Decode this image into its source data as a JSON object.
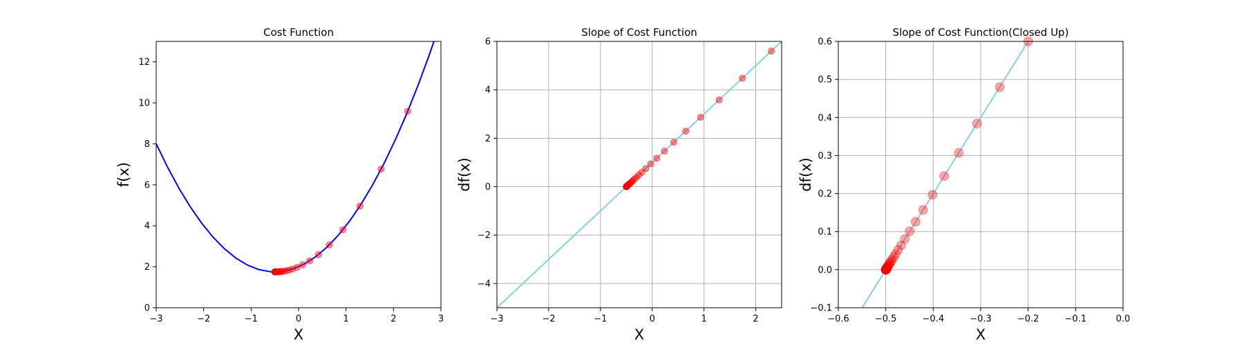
{
  "chart_data": [
    {
      "type": "line",
      "title": "Cost Function",
      "xlabel": "X",
      "ylabel": "f(x)",
      "xlim": [
        -3,
        3
      ],
      "ylim": [
        0,
        13
      ],
      "xticks": [
        -3,
        -2,
        -1,
        0,
        1,
        2,
        3
      ],
      "yticks": [
        0,
        2,
        4,
        6,
        8,
        10,
        12
      ],
      "grid": false,
      "curve": {
        "function": "x^2 + x + 2",
        "color": "#0000ff"
      },
      "points": {
        "color": "#ff0000",
        "x": [
          2.3,
          1.74,
          1.292,
          0.9336,
          0.6469,
          0.4175,
          0.234,
          0.0872,
          -0.0302,
          -0.1242,
          -0.1994,
          -0.2595,
          -0.3076,
          -0.3461,
          -0.3769,
          -0.4015,
          -0.4212,
          -0.437,
          -0.4496,
          -0.4597,
          -0.4677,
          -0.4742,
          -0.4794,
          -0.4835,
          -0.4868,
          -0.4894,
          -0.4916,
          -0.4932,
          -0.4946,
          -0.4957,
          -0.4965,
          -0.4972,
          -0.4978,
          -0.4982,
          -0.4986,
          -0.4989,
          -0.4991,
          -0.4993,
          -0.4994,
          -0.4995
        ],
        "y": [
          9.59,
          6.768,
          4.961,
          3.805,
          3.065,
          2.592,
          2.289,
          2.095,
          1.971,
          1.891,
          1.84,
          1.808,
          1.787,
          1.774,
          1.765,
          1.76,
          1.756,
          1.754,
          1.7525,
          1.7516,
          1.751,
          1.7507,
          1.7504,
          1.7503,
          1.7502,
          1.7501,
          1.75,
          1.75,
          1.75,
          1.75,
          1.75,
          1.75,
          1.75,
          1.75,
          1.75,
          1.75,
          1.75,
          1.75,
          1.75,
          1.75
        ]
      }
    },
    {
      "type": "line",
      "title": "Slope of Cost Function",
      "xlabel": "X",
      "ylabel": "df(x)",
      "xlim": [
        -3,
        2.5
      ],
      "ylim": [
        -5,
        6
      ],
      "xticks": [
        -3,
        -2,
        -1,
        0,
        1,
        2
      ],
      "yticks": [
        -4,
        -2,
        0,
        2,
        4,
        6
      ],
      "grid": true,
      "curve": {
        "function": "2x + 1",
        "color": "#87ceeb"
      },
      "points": {
        "color": "#ff0000",
        "x": [
          2.3,
          1.74,
          1.292,
          0.9336,
          0.6469,
          0.4175,
          0.234,
          0.0872,
          -0.0302,
          -0.1242,
          -0.1994,
          -0.2595,
          -0.3076,
          -0.3461,
          -0.3769,
          -0.4015,
          -0.4212,
          -0.437,
          -0.4496,
          -0.4597,
          -0.4677,
          -0.4742,
          -0.4794,
          -0.4835,
          -0.4868,
          -0.4894,
          -0.4916,
          -0.4932,
          -0.4946,
          -0.4957,
          -0.4965,
          -0.4972,
          -0.4978,
          -0.4982,
          -0.4986,
          -0.4989,
          -0.4991,
          -0.4993,
          -0.4994,
          -0.4995
        ],
        "y": [
          5.6,
          4.48,
          3.584,
          2.867,
          2.294,
          1.835,
          1.468,
          1.174,
          0.94,
          0.752,
          0.601,
          0.481,
          0.385,
          0.308,
          0.246,
          0.197,
          0.158,
          0.126,
          0.101,
          0.081,
          0.065,
          0.052,
          0.041,
          0.033,
          0.026,
          0.021,
          0.017,
          0.014,
          0.011,
          0.009,
          0.007,
          0.006,
          0.004,
          0.004,
          0.003,
          0.002,
          0.002,
          0.001,
          0.001,
          0.001
        ]
      }
    },
    {
      "type": "line",
      "title": "Slope of Cost Function(Closed Up)",
      "xlabel": "X",
      "ylabel": "df(x)",
      "xlim": [
        -0.6,
        0.0
      ],
      "ylim": [
        -0.1,
        0.6
      ],
      "xticks": [
        -0.6,
        -0.5,
        -0.4,
        -0.3,
        -0.2,
        -0.1,
        0.0
      ],
      "yticks": [
        -0.1,
        0.0,
        0.1,
        0.2,
        0.3,
        0.4,
        0.5,
        0.6
      ],
      "grid": true,
      "curve": {
        "function": "2x + 1",
        "color": "#87ceeb"
      },
      "points": {
        "color": "#ff0000",
        "x": [
          -0.2,
          -0.26,
          -0.308,
          -0.3464,
          -0.3771,
          -0.4017,
          -0.4214,
          -0.4371,
          -0.4497,
          -0.4597,
          -0.4678,
          -0.4742,
          -0.4794,
          -0.4835,
          -0.4868,
          -0.4894,
          -0.4916,
          -0.4932,
          -0.4946,
          -0.4957,
          -0.4965,
          -0.4972,
          -0.4978,
          -0.4982,
          -0.4986,
          -0.4989,
          -0.4991,
          -0.4993,
          -0.4994,
          -0.4995,
          -0.4996,
          -0.4997,
          -0.4998,
          -0.4998,
          -0.4999,
          -0.4999,
          -0.4999,
          -0.4999,
          -0.5,
          -0.5
        ],
        "y": [
          0.6,
          0.48,
          0.384,
          0.307,
          0.246,
          0.197,
          0.157,
          0.126,
          0.101,
          0.081,
          0.064,
          0.052,
          0.041,
          0.033,
          0.026,
          0.021,
          0.017,
          0.014,
          0.011,
          0.009,
          0.007,
          0.006,
          0.004,
          0.004,
          0.003,
          0.002,
          0.002,
          0.001,
          0.001,
          0.001,
          0.001,
          0.0,
          0.0,
          0.0,
          0.0,
          0.0,
          0.0,
          0.0,
          0.0,
          0.0
        ]
      }
    }
  ]
}
